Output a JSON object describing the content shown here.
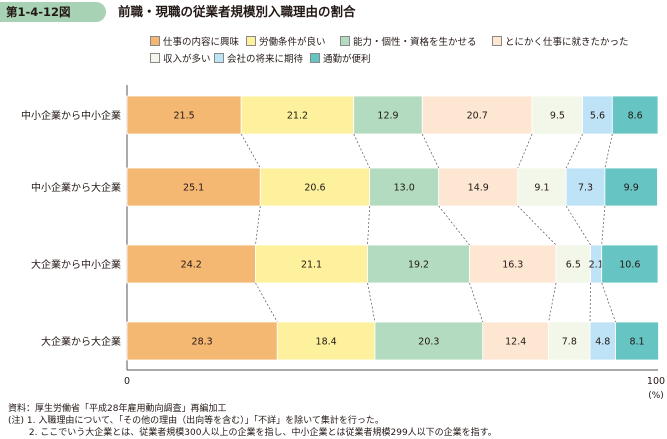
{
  "figure": {
    "number": "第1-4-12図",
    "title": "前職・現職の従業者規模別入職理由の割合"
  },
  "notes": [
    "資料：厚生労働省「平成28年雇用動向調査」再編加工",
    "(注) 1. 入職理由について、「その他の理由（出向等を含む）」「不詳」を除いて集計を行った。",
    "　　 2. ここでいう大企業とは、従業者規模300人以上の企業を指し、中小企業とは従業者規模299人以下の企業を指す。"
  ],
  "colors": [
    "#f5b872",
    "#fdf19e",
    "#b3dbc0",
    "#fde7d3",
    "#f3f7ea",
    "#bfe3f6",
    "#66c4c3"
  ],
  "chart_data": {
    "type": "bar",
    "orientation": "horizontal",
    "stacked": true,
    "categories": [
      "中小企業から中小企業",
      "中小企業から大企業",
      "大企業から中小企業",
      "大企業から大企業"
    ],
    "series": [
      {
        "name": "仕事の内容に興味",
        "values": [
          21.5,
          25.1,
          24.2,
          28.3
        ]
      },
      {
        "name": "労働条件が良い",
        "values": [
          21.2,
          20.6,
          21.1,
          18.4
        ]
      },
      {
        "name": "能力・個性・資格を生かせる",
        "values": [
          12.9,
          13.0,
          19.2,
          20.3
        ]
      },
      {
        "name": "とにかく仕事に就きたかった",
        "values": [
          20.7,
          14.9,
          16.3,
          12.4
        ]
      },
      {
        "name": "収入が多い",
        "values": [
          9.5,
          9.1,
          6.5,
          7.8
        ]
      },
      {
        "name": "会社の将来に期待",
        "values": [
          5.6,
          7.3,
          2.1,
          4.8
        ]
      },
      {
        "name": "通勤が便利",
        "values": [
          8.6,
          9.9,
          10.6,
          8.1
        ]
      }
    ],
    "xlim": [
      0,
      100
    ],
    "x_ticks": [
      "0",
      "100"
    ],
    "x_unit": "(%)",
    "legend_position": "top",
    "grid": false
  }
}
